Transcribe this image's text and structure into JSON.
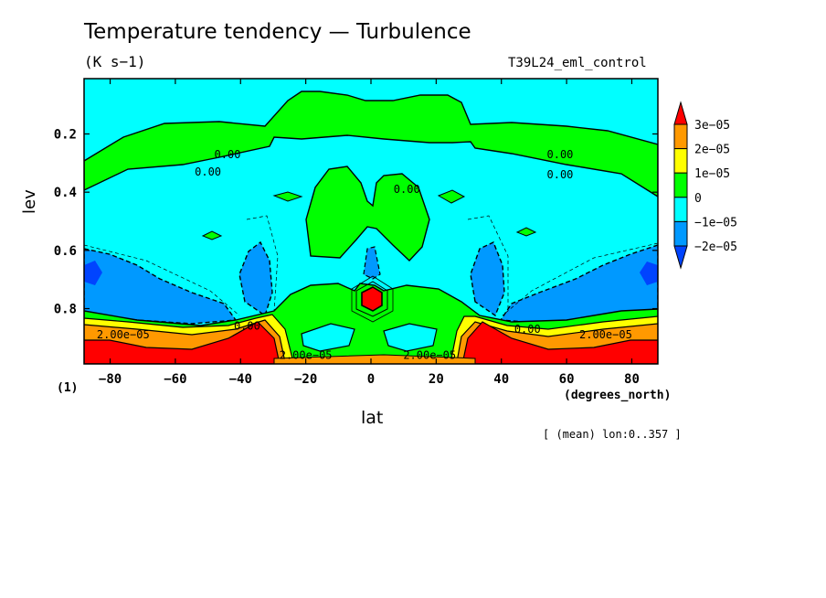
{
  "figure": {
    "title": "Temperature tendency — Turbulence",
    "units_label": "(K s−1)",
    "run_label": "T39L24_eml_control",
    "xlabel": "lat",
    "ylabel": "lev",
    "x_units": "(degrees_north)",
    "y_multiplier": "(1)",
    "note": "[ (mean) lon:0..357 ]"
  },
  "chart_data": {
    "type": "heatmap",
    "title": "Temperature tendency — Turbulence",
    "xlabel": "lat",
    "ylabel": "lev",
    "xlim": [
      -88,
      88
    ],
    "ylim": [
      0.01,
      0.99
    ],
    "y_inverted": true,
    "x_ticks": [
      -80,
      -60,
      -40,
      -20,
      0,
      20,
      40,
      60,
      80
    ],
    "x_tick_labels": [
      "−80",
      "−60",
      "−40",
      "−20",
      "0",
      "20",
      "40",
      "60",
      "80"
    ],
    "y_ticks": [
      0.2,
      0.4,
      0.6,
      0.8
    ],
    "y_tick_labels": [
      "0.2",
      "0.4",
      "0.6",
      "0.8"
    ],
    "legend": {
      "placement": "right",
      "levels": [
        "3e−05",
        "2e−05",
        "1e−05",
        "0",
        "−1e−05",
        "−2e−05"
      ],
      "colors": [
        "#ff0000",
        "#ff9900",
        "#ffff00",
        "#00ff00",
        "#00ffff",
        "#0099ff",
        "#0044ff"
      ]
    },
    "contour_labels": [
      {
        "text": "0.00",
        "lat": -44,
        "lev": 0.27
      },
      {
        "text": "0.00",
        "lat": -50,
        "lev": 0.33
      },
      {
        "text": "0.00",
        "lat": 58,
        "lev": 0.27
      },
      {
        "text": "0.00",
        "lat": 58,
        "lev": 0.34
      },
      {
        "text": "0.00",
        "lat": 11,
        "lev": 0.39
      },
      {
        "text": "0.00",
        "lat": -38,
        "lev": 0.86
      },
      {
        "text": "0.00",
        "lat": 48,
        "lev": 0.87
      },
      {
        "text": "2.00e−05",
        "lat": -76,
        "lev": 0.89
      },
      {
        "text": "2.00e−05",
        "lat": 72,
        "lev": 0.89
      },
      {
        "text": "2.00e−05",
        "lat": -20,
        "lev": 0.96
      },
      {
        "text": "2.00e−05",
        "lat": 18,
        "lev": 0.96
      }
    ],
    "field_description": {
      "background": "0 to -1e-05",
      "upper_band": "0 to 1e-05 between lev 0.05 and 0.3",
      "tropical_column": "0 to 1e-05 near equator lev 0.3-0.6",
      "midlat_lobes": "-1e-05 to -2e-05 near lat ±40 and poles lev 0.6-0.8",
      "surface_layer": "positive up to >3e-05 below lev 0.85, maxima near lat ±40 and equator"
    }
  }
}
